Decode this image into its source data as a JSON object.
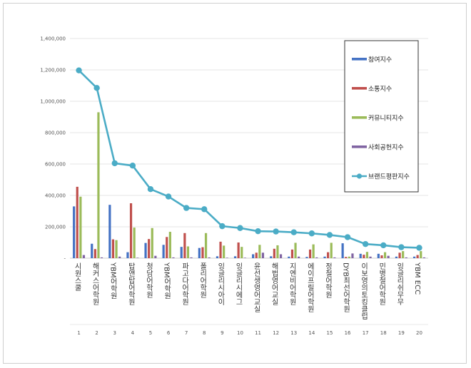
{
  "chart_data": {
    "type": "bar",
    "title": "",
    "xlabel": "",
    "ylabel": "",
    "ylim": [
      0,
      1400000
    ],
    "yticks": [
      "-",
      "200,000",
      "400,000",
      "600,000",
      "800,000",
      "1,000,000",
      "1,200,000",
      "1,400,000"
    ],
    "ytick_values": [
      0,
      200000,
      400000,
      600000,
      800000,
      1000000,
      1200000,
      1400000
    ],
    "grid": true,
    "legend": "top-right",
    "categories": [
      "시원스쿨",
      "해커스어학원",
      "YBM어학원",
      "탑앤탑어학원",
      "청담어학원",
      "YBM어학원",
      "파고다어학원",
      "폴리어학원",
      "잉글리시아이",
      "잉글리시에그",
      "윤선생영어교실",
      "해법영어교실",
      "지엔비어학원",
      "에이프릴어학원",
      "정철어학원",
      "DYB최선어학원",
      "이보영의토킹클럽",
      "민병철어학원",
      "잉글리쉬무무",
      "YBM ECC"
    ],
    "index_labels": [
      "1",
      "2",
      "3",
      "4",
      "5",
      "6",
      "7",
      "8",
      "9",
      "10",
      "11",
      "12",
      "13",
      "14",
      "15",
      "16",
      "17",
      "18",
      "19",
      "20"
    ],
    "series": [
      {
        "name": "참여지수",
        "kind": "bar",
        "color": "#4472c4",
        "values": [
          330000,
          92000,
          340000,
          38000,
          97000,
          85000,
          72000,
          65000,
          12000,
          12000,
          25000,
          12000,
          10000,
          8000,
          10000,
          95000,
          28000,
          28000,
          10000,
          10000
        ]
      },
      {
        "name": "소통지수",
        "kind": "bar",
        "color": "#c0504d",
        "values": [
          455000,
          58000,
          120000,
          350000,
          122000,
          135000,
          160000,
          70000,
          105000,
          100000,
          35000,
          60000,
          55000,
          55000,
          38000,
          8000,
          22000,
          18000,
          35000,
          20000
        ]
      },
      {
        "name": "커뮤니티지수",
        "kind": "bar",
        "color": "#9bbb59",
        "values": [
          392000,
          930000,
          115000,
          195000,
          192000,
          168000,
          75000,
          160000,
          80000,
          72000,
          85000,
          82000,
          98000,
          88000,
          98000,
          10000,
          40000,
          38000,
          45000,
          45000
        ]
      },
      {
        "name": "사회공헌지수",
        "kind": "bar",
        "color": "#8064a2",
        "values": [
          20000,
          5000,
          10000,
          3000,
          15000,
          5000,
          5000,
          5000,
          3000,
          3000,
          35000,
          25000,
          10000,
          5000,
          5000,
          30000,
          10000,
          15000,
          5000,
          5000
        ]
      },
      {
        "name": "브랜드평판지수",
        "kind": "line",
        "color": "#4bacc6",
        "values": [
          1197000,
          1085000,
          605000,
          590000,
          440000,
          393000,
          320000,
          312000,
          204000,
          192000,
          172000,
          170000,
          165000,
          158000,
          148000,
          134000,
          90000,
          82000,
          70000,
          66000
        ]
      }
    ]
  }
}
